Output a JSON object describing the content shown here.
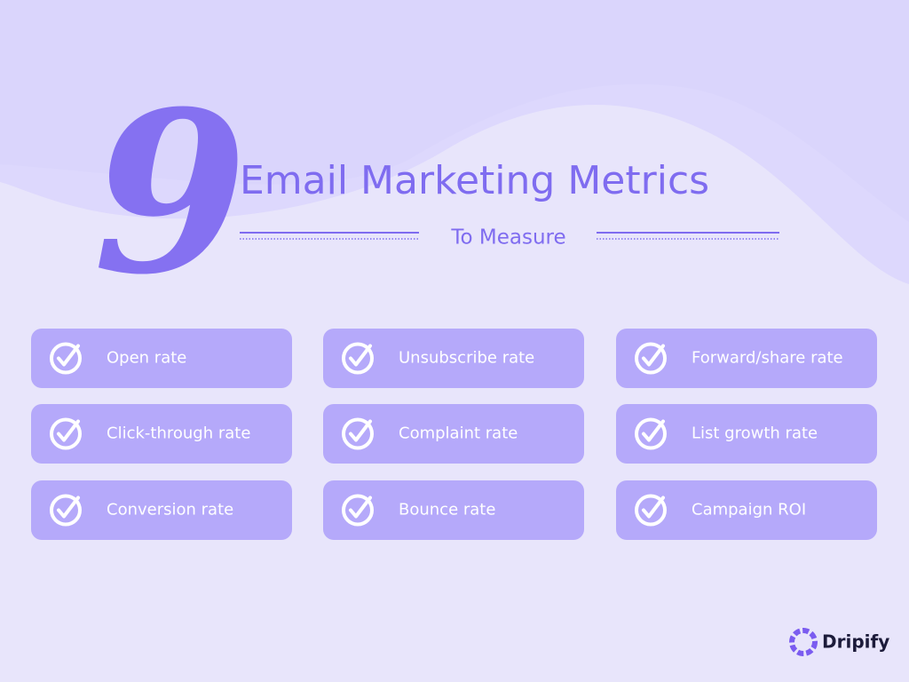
{
  "header": {
    "number": "9",
    "title": "Email Marketing Metrics",
    "subtitle": "To Measure"
  },
  "items": [
    "Open rate",
    "Unsubscribe rate",
    "Forward/share rate",
    "Click-through rate",
    "Complaint rate",
    "List growth rate",
    "Conversion rate",
    "Bounce rate",
    "Campaign ROI"
  ],
  "brand": "Dripify"
}
